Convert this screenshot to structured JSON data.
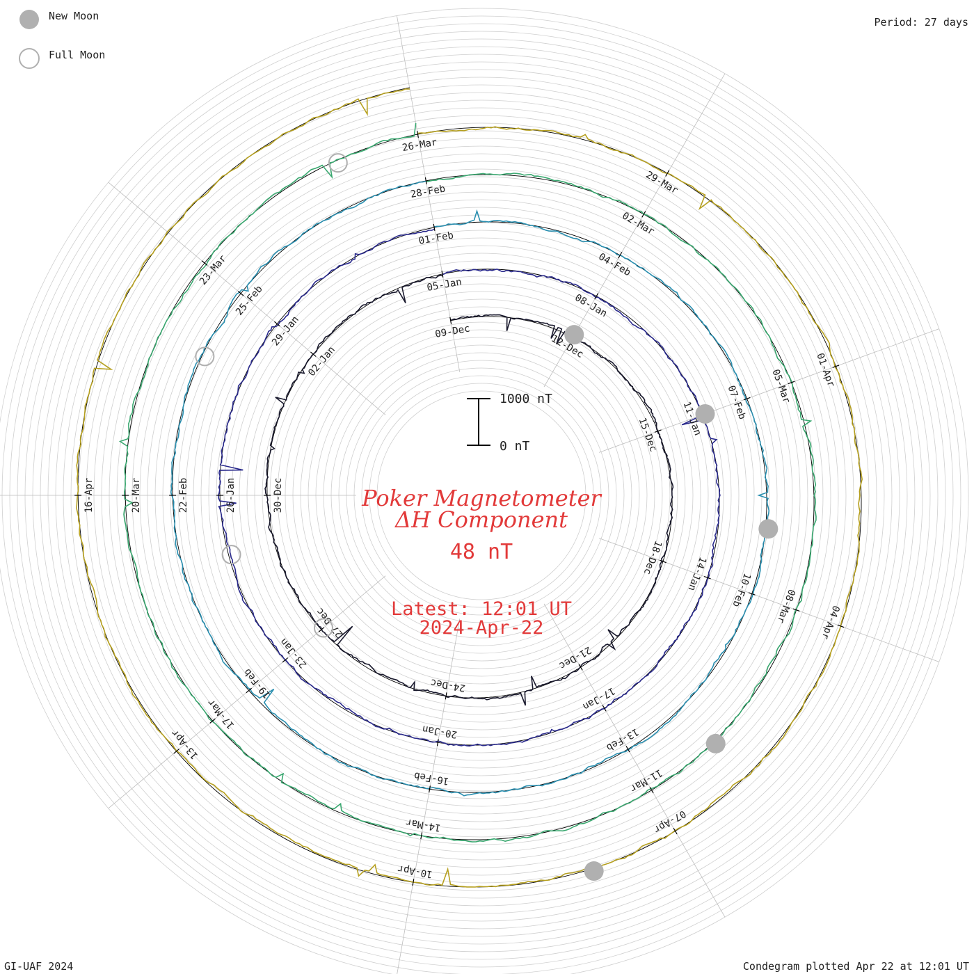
{
  "legend": {
    "new_moon": "New Moon",
    "full_moon": "Full Moon",
    "new_moon_color": "#b0b0b0",
    "full_moon_color": "#b0b0b0"
  },
  "period_label": "Period: 27 days",
  "footer_left": "GI-UAF 2024",
  "footer_right": "Condegram plotted Apr 22 at 12:01 UT",
  "center": {
    "title_line1": "Poker Magnetometer",
    "title_line2": "ΔH Component",
    "baseline_value": "48 nT",
    "latest_line1": "Latest: 12:01 UT",
    "latest_line2": "2024-Apr-22",
    "scale_top": "1000 nT",
    "scale_bottom": "0 nT",
    "text_color": "#e23a3a"
  },
  "chart_data": {
    "type": "line",
    "title": "Poker Magnetometer ΔH Component",
    "period_days": 27,
    "start_date": "2023-12-09",
    "end_date": "2024-04-22",
    "baseline_nT": 48,
    "scale_bar_nT": [
      0,
      1000
    ],
    "revolutions": [
      {
        "start_label": "09-Dec",
        "color": "#1a1a2e",
        "tick_labels": [
          "09-Dec",
          "12-Dec",
          "15-Dec",
          "18-Dec",
          "21-Dec",
          "24-Dec",
          "27-Dec",
          "30-Dec",
          "02-Jan"
        ]
      },
      {
        "start_label": "05-Jan",
        "color": "#2a2a8c",
        "tick_labels": [
          "05-Jan",
          "08-Jan",
          "11-Jan",
          "14-Jan",
          "17-Jan",
          "20-Jan",
          "23-Jan",
          "26-Jan",
          "29-Jan"
        ]
      },
      {
        "start_label": "01-Feb",
        "color": "#2a8fb0",
        "tick_labels": [
          "01-Feb",
          "04-Feb",
          "07-Feb",
          "10-Feb",
          "13-Feb",
          "16-Feb",
          "19-Feb",
          "22-Feb",
          "25-Feb"
        ]
      },
      {
        "start_label": "28-Feb",
        "color": "#3aa870",
        "tick_labels": [
          "28-Feb",
          "02-Mar",
          "05-Mar",
          "08-Mar",
          "11-Mar",
          "14-Mar",
          "17-Mar",
          "20-Mar",
          "23-Mar"
        ]
      },
      {
        "start_label": "26-Mar",
        "color": "#b6a020",
        "tick_labels": [
          "26-Mar",
          "29-Mar",
          "01-Apr",
          "04-Apr",
          "07-Apr",
          "10-Apr",
          "13-Apr",
          "16-Apr"
        ]
      },
      {
        "start_label": "22-Apr",
        "color": "#c23020",
        "tick_labels": []
      }
    ],
    "new_moons": [
      "2023-12-12",
      "2024-01-11",
      "2024-02-09",
      "2024-03-10",
      "2024-04-08"
    ],
    "full_moons": [
      "2023-12-27",
      "2024-01-25",
      "2024-02-24",
      "2024-03-25"
    ]
  }
}
